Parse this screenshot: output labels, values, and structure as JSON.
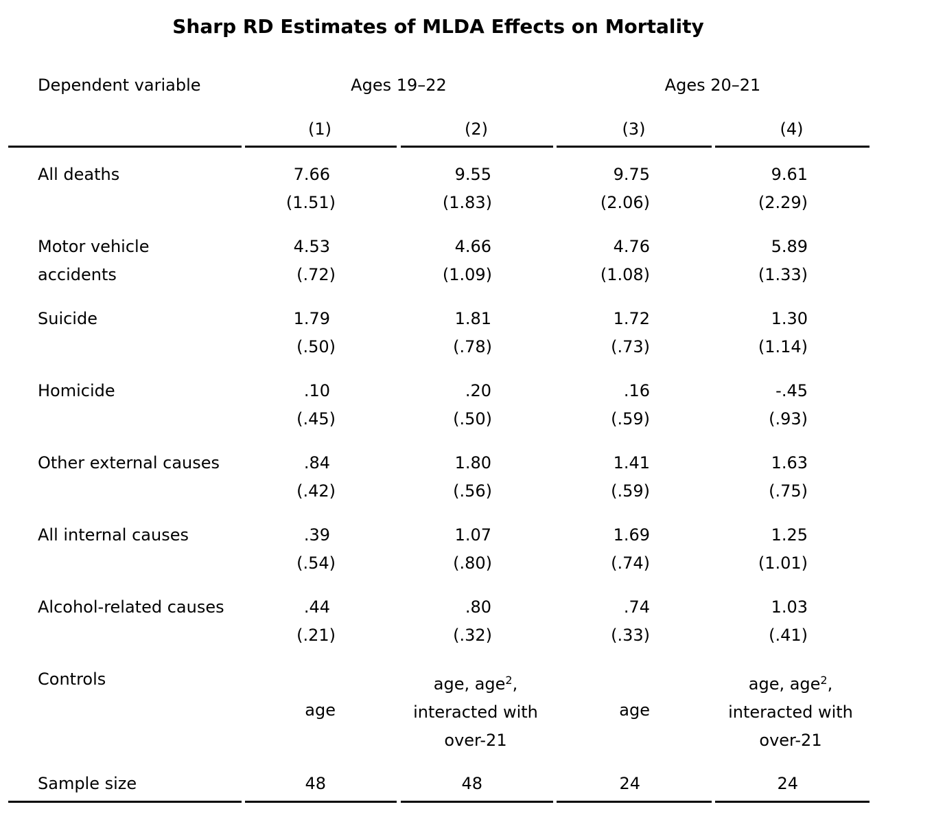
{
  "title": "Sharp RD Estimates of MLDA Effects on Mortality",
  "header": {
    "dependent_variable": "Dependent variable",
    "group1": "Ages 19–22",
    "group2": "Ages 20–21",
    "columns": [
      "(1)",
      "(2)",
      "(3)",
      "(4)"
    ]
  },
  "rows": [
    {
      "label": [
        "All deaths"
      ],
      "est": [
        "7.66",
        "9.55",
        "9.75",
        "9.61"
      ],
      "se": [
        "(1.51)",
        "(1.83)",
        "(2.06)",
        "(2.29)"
      ]
    },
    {
      "label": [
        "Motor vehicle",
        "accidents"
      ],
      "est": [
        "4.53",
        "4.66",
        "4.76",
        "5.89"
      ],
      "se": [
        "(.72)",
        "(1.09)",
        "(1.08)",
        "(1.33)"
      ]
    },
    {
      "label": [
        "Suicide"
      ],
      "est": [
        "1.79",
        "1.81",
        "1.72",
        "1.30"
      ],
      "se": [
        "(.50)",
        "(.78)",
        "(.73)",
        "(1.14)"
      ]
    },
    {
      "label": [
        "Homicide"
      ],
      "est": [
        ".10",
        ".20",
        ".16",
        "-.45"
      ],
      "se": [
        "(.45)",
        "(.50)",
        "(.59)",
        "(.93)"
      ]
    },
    {
      "label": [
        "Other external causes"
      ],
      "est": [
        ".84",
        "1.80",
        "1.41",
        "1.63"
      ],
      "se": [
        "(.42)",
        "(.56)",
        "(.59)",
        "(.75)"
      ]
    },
    {
      "label": [
        "All internal causes"
      ],
      "est": [
        ".39",
        "1.07",
        "1.69",
        "1.25"
      ],
      "se": [
        "(.54)",
        "(.80)",
        "(.74)",
        "(1.01)"
      ]
    },
    {
      "label": [
        "Alcohol-related causes"
      ],
      "est": [
        ".44",
        ".80",
        ".74",
        "1.03"
      ],
      "se": [
        "(.21)",
        "(.32)",
        "(.33)",
        "(.41)"
      ]
    }
  ],
  "controls": {
    "label": "Controls",
    "simple": "age",
    "poly_line1_prefix": "age, age",
    "poly_sup": "2",
    "poly_line1_suffix": ",",
    "poly_line2": "interacted with",
    "poly_line3": "over-21"
  },
  "sample_size": {
    "label": "Sample size",
    "values": [
      "48",
      "48",
      "24",
      "24"
    ]
  }
}
